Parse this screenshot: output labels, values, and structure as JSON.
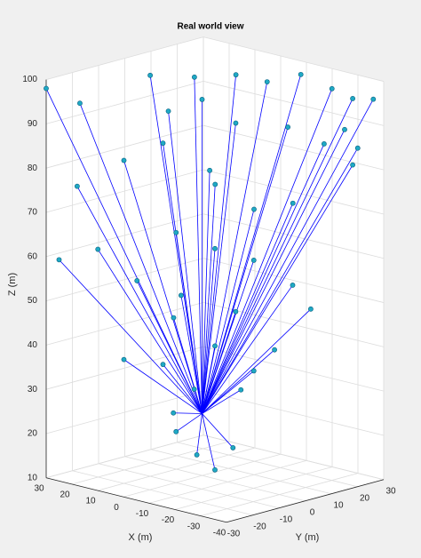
{
  "chart_data": {
    "type": "scatter3",
    "title": "Real world view",
    "xlabel": "X (m)",
    "ylabel": "Y (m)",
    "zlabel": "Z (m)",
    "xlim": [
      -40,
      30
    ],
    "ylim": [
      -30,
      30
    ],
    "zlim": [
      10,
      100
    ],
    "xticks": [
      30,
      20,
      10,
      0,
      -10,
      -20,
      -30,
      -40
    ],
    "yticks": [
      -30,
      -20,
      -10,
      0,
      10,
      20,
      30
    ],
    "zticks": [
      10,
      20,
      30,
      40,
      50,
      60,
      70,
      80,
      90,
      100
    ],
    "grid": true,
    "marker_color": "#1fa9c4",
    "line_color": "#0000ff",
    "source": {
      "x": 0,
      "y": 0,
      "z": 24
    },
    "x": [
      30,
      22,
      12,
      5,
      -5,
      -10,
      -18,
      -25,
      -30,
      -35,
      -38,
      0,
      8,
      -8,
      10,
      20,
      -15,
      -25,
      -35,
      -30,
      5,
      -5,
      0,
      -10,
      -20,
      15,
      25,
      10,
      5,
      -5,
      -15,
      -25,
      -30,
      0,
      -10,
      10,
      5,
      -5,
      -15,
      0,
      5,
      0,
      -5,
      -12,
      3,
      -10,
      -20,
      8
    ],
    "y": [
      -30,
      -25,
      -8,
      2,
      8,
      15,
      20,
      25,
      28,
      20,
      28,
      0,
      -5,
      5,
      -20,
      -28,
      18,
      22,
      25,
      28,
      -10,
      -2,
      5,
      10,
      15,
      -25,
      -30,
      -15,
      -5,
      0,
      5,
      10,
      12,
      -8,
      3,
      -20,
      -10,
      0,
      5,
      -3,
      -5,
      -2,
      0,
      0,
      -8,
      5,
      8,
      -3
    ],
    "z": [
      98,
      95,
      100,
      99,
      100,
      98,
      100,
      97,
      95,
      90,
      96,
      95,
      92,
      90,
      83,
      77,
      88,
      85,
      85,
      80,
      86,
      80,
      75,
      70,
      72,
      63,
      60,
      55,
      65,
      62,
      60,
      55,
      50,
      52,
      48,
      38,
      36,
      40,
      35,
      30,
      20,
      15,
      12,
      18,
      25,
      30,
      40,
      45
    ]
  }
}
